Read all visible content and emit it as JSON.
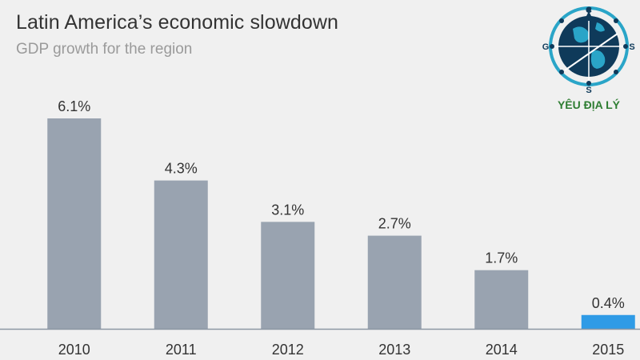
{
  "header": {
    "title": "Latin America’s economic slowdown",
    "subtitle": "GDP growth for the region"
  },
  "logo": {
    "text": "YÊU ĐỊA LÝ",
    "letters": [
      "C",
      "G",
      "S",
      "S"
    ]
  },
  "colors": {
    "background": "#f0f0f0",
    "bar": "#99a3b0",
    "bar_highlight": "#2f9be6",
    "text": "#333333",
    "axis": "#8c96a3",
    "logo_navy": "#0f3a5a",
    "logo_teal": "#2aa5c8",
    "logo_text": "#2e7d32"
  },
  "chart_data": {
    "type": "bar",
    "title": "Latin America’s economic slowdown",
    "subtitle": "GDP growth for the region",
    "categories": [
      "2010",
      "2011",
      "2012",
      "2013",
      "2014",
      "2015"
    ],
    "values": [
      6.1,
      4.3,
      3.1,
      2.7,
      1.7,
      0.4
    ],
    "value_labels": [
      "6.1%",
      "4.3%",
      "3.1%",
      "2.7%",
      "1.7%",
      "0.4%"
    ],
    "highlight_index": 5,
    "xlabel": "",
    "ylabel": "",
    "ylim": [
      0,
      6.1
    ],
    "grid": false,
    "legend": "none"
  }
}
